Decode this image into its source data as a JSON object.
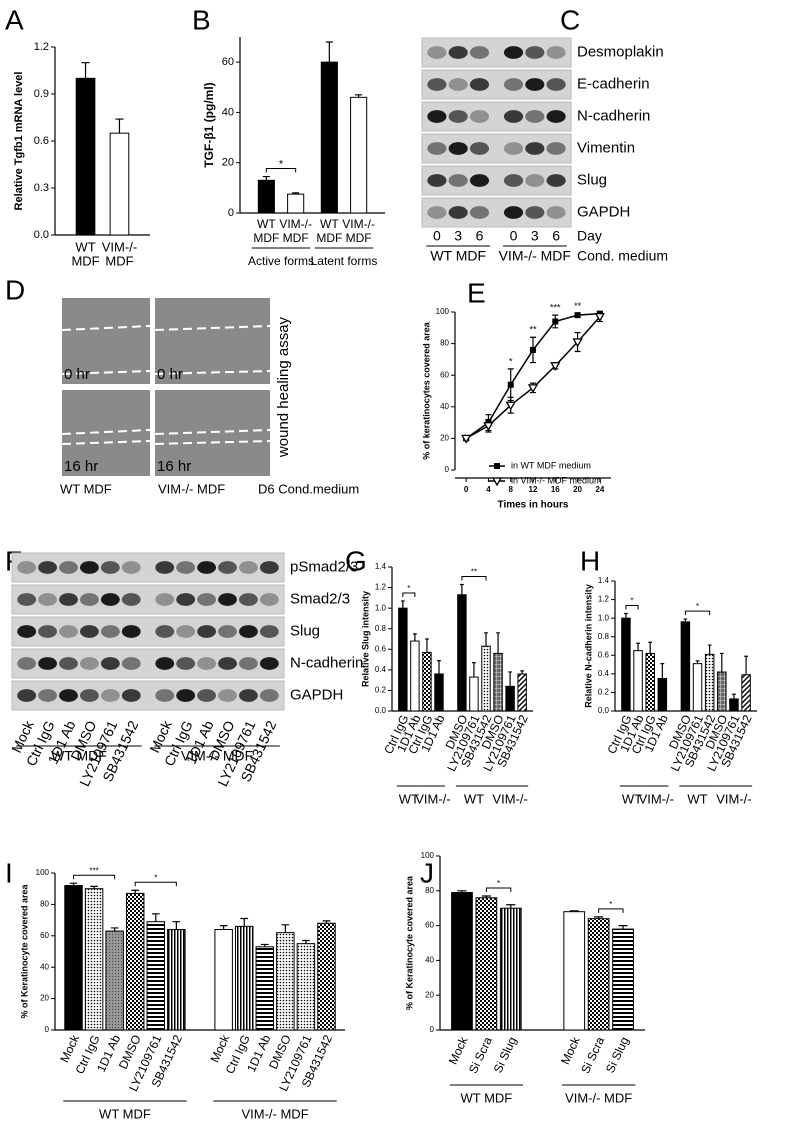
{
  "chart_data": [
    {
      "panel": "A",
      "type": "bar",
      "ylabel": "Relative Tgfb1 mRNA level",
      "categories": [
        [
          "WT",
          "MDF"
        ],
        [
          "VIM-/-",
          "MDF"
        ]
      ],
      "values": [
        1.0,
        0.65
      ],
      "errors": [
        0.1,
        0.09
      ],
      "patterns": [
        "black",
        "white"
      ],
      "ylim": [
        0,
        1.2
      ],
      "yticks": [
        {
          "value": 0,
          "label": "0.0"
        },
        0.3,
        0.6,
        0.9,
        1.2
      ]
    },
    {
      "panel": "B",
      "type": "bar",
      "ylabel": "TGF-β1 (pg/ml)",
      "ylim": [
        0,
        70
      ],
      "yticks": [
        0,
        20,
        40,
        60
      ],
      "groups": [
        {
          "name": "Active forms",
          "categories": [
            [
              "WT",
              "MDF"
            ],
            [
              "VIM-/-",
              "MDF"
            ]
          ],
          "values": [
            13,
            7.5
          ],
          "errors": [
            1.5,
            0.5
          ],
          "patterns": [
            "black",
            "white"
          ]
        },
        {
          "name": "Latent forms",
          "categories": [
            [
              "WT",
              "MDF"
            ],
            [
              "VIM-/-",
              "MDF"
            ]
          ],
          "values": [
            60,
            46
          ],
          "errors": [
            8,
            1
          ],
          "patterns": [
            "black",
            "white"
          ]
        }
      ],
      "brackets": [
        {
          "label": "*",
          "from": 0,
          "to": 1
        }
      ]
    },
    {
      "panel": "E",
      "type": "line",
      "ylabel": "% of keratinocytes covered area",
      "xlabel": "Times in hours",
      "x": [
        0,
        4,
        8,
        12,
        16,
        20,
        24
      ],
      "xlim": [
        -2,
        26
      ],
      "xticks": [
        0,
        4,
        8,
        12,
        16,
        20,
        24
      ],
      "ylim": [
        0,
        100
      ],
      "yticks": [
        0,
        20,
        40,
        60,
        80,
        100
      ],
      "legend": "lower right",
      "series": [
        {
          "name": "in WT MDF medium",
          "marker": "square",
          "color": "#000000",
          "values": [
            20,
            30,
            54,
            76,
            94,
            98,
            99
          ],
          "errors": [
            1,
            5,
            10,
            8,
            4,
            1,
            1
          ]
        },
        {
          "name": "in VIM-/- MDF medium",
          "marker": "triangle-down",
          "color": "#000000",
          "values": [
            20,
            28,
            41,
            52,
            66,
            81,
            97
          ],
          "errors": [
            1,
            4,
            5,
            3,
            2,
            6,
            3
          ]
        }
      ],
      "annotations": [
        {
          "x": 8,
          "text": "*"
        },
        {
          "x": 12,
          "text": "**"
        },
        {
          "x": 16,
          "text": "***"
        },
        {
          "x": 20,
          "text": "**"
        }
      ]
    },
    {
      "panel": "G",
      "type": "bar",
      "ylabel": "Relative Slug intensity",
      "ylim": [
        0,
        1.4
      ],
      "yticks": [
        {
          "value": 0,
          "label": "0.0"
        },
        0.2,
        0.4,
        0.6,
        0.8,
        {
          "value": 1,
          "label": "1.0"
        },
        1.2,
        1.4
      ],
      "groups": [
        {
          "name": "WT",
          "categories": [
            "Ctrl IgG",
            "1D1 Ab"
          ],
          "values": [
            1.0,
            0.68
          ],
          "errors": [
            0.07,
            0.07
          ],
          "patterns": [
            "black",
            "white"
          ]
        },
        {
          "name": "VIM-/-",
          "categories": [
            "Ctrl IgG",
            "1D1 Ab"
          ],
          "values": [
            0.57,
            0.36
          ],
          "errors": [
            0.13,
            0.13
          ],
          "patterns": [
            "checker",
            "black"
          ]
        },
        {
          "name": "WT",
          "categories": [
            "DMSO",
            "LY2109761",
            "SB431542"
          ],
          "values": [
            1.13,
            0.33,
            0.63
          ],
          "errors": [
            0.1,
            0.14,
            0.13
          ],
          "patterns": [
            "black",
            "white",
            "dots"
          ]
        },
        {
          "name": "VIM-/-",
          "categories": [
            "DMSO",
            "LY2109761",
            "SB431542"
          ],
          "values": [
            0.56,
            0.24,
            0.36
          ],
          "errors": [
            0.2,
            0.14,
            0.03
          ],
          "patterns": [
            "grid",
            "black",
            "diag"
          ]
        }
      ],
      "brackets": [
        {
          "label": "*",
          "from": 0,
          "to": 1
        },
        {
          "label": "**",
          "from": 4,
          "to": 6
        }
      ]
    },
    {
      "panel": "H",
      "type": "bar",
      "ylabel": "Relative N-cadherin intensity",
      "ylim": [
        0,
        1.4
      ],
      "yticks": [
        {
          "value": 0,
          "label": "0.0"
        },
        0.2,
        0.4,
        0.6,
        0.8,
        {
          "value": 1,
          "label": "1.0"
        },
        1.2,
        1.4
      ],
      "groups": [
        {
          "name": "WT",
          "categories": [
            "Ctrl IgG",
            "1D1 Ab"
          ],
          "values": [
            1.0,
            0.65
          ],
          "errors": [
            0.05,
            0.08
          ],
          "patterns": [
            "black",
            "white"
          ]
        },
        {
          "name": "VIM-/-",
          "categories": [
            "Ctrl IgG",
            "1D1 Ab"
          ],
          "values": [
            0.62,
            0.35
          ],
          "errors": [
            0.12,
            0.16
          ],
          "patterns": [
            "checker",
            "black"
          ]
        },
        {
          "name": "WT",
          "categories": [
            "DMSO",
            "LY2109761",
            "SB431542"
          ],
          "values": [
            0.96,
            0.51,
            0.61
          ],
          "errors": [
            0.03,
            0.03,
            0.1
          ],
          "patterns": [
            "black",
            "white",
            "dots"
          ]
        },
        {
          "name": "VIM-/-",
          "categories": [
            "DMSO",
            "LY2109761",
            "SB431542"
          ],
          "values": [
            0.42,
            0.13,
            0.39
          ],
          "errors": [
            0.2,
            0.05,
            0.2
          ],
          "patterns": [
            "grid",
            "black",
            "diag"
          ]
        }
      ],
      "brackets": [
        {
          "label": "*",
          "from": 0,
          "to": 1
        },
        {
          "label": "*",
          "from": 4,
          "to": 6
        }
      ]
    },
    {
      "panel": "I",
      "type": "bar",
      "ylabel": "% of Keratinocyte covered area",
      "ylim": [
        0,
        100
      ],
      "yticks": [
        0,
        20,
        40,
        60,
        80,
        100
      ],
      "groups": [
        {
          "name": "WT MDF",
          "categories": [
            "Mock",
            "Ctrl IgG",
            "1D1 Ab",
            "DMSO",
            "LY2109761",
            "SB431542"
          ],
          "values": [
            92,
            90,
            63,
            87,
            69,
            64
          ],
          "errors": [
            1.5,
            1.5,
            2,
            2,
            5,
            5
          ],
          "patterns": [
            "black",
            "dots",
            "gray",
            "checker",
            "hstripes",
            "vstripes"
          ]
        },
        {
          "name": "VIM-/- MDF",
          "categories": [
            "Mock",
            "Ctrl IgG",
            "1D1 Ab",
            "DMSO",
            "LY2109761",
            "SB431542"
          ],
          "values": [
            64,
            66,
            53,
            62,
            55,
            68
          ],
          "errors": [
            2.5,
            5,
            1.5,
            5,
            2,
            1.5
          ],
          "patterns": [
            "white",
            "vstripes",
            "hstripes",
            "dots",
            "dots",
            "checker"
          ]
        }
      ],
      "brackets": [
        {
          "label": "***",
          "from": 0,
          "to": 2
        },
        {
          "label": "*",
          "from": 3,
          "to": 5
        }
      ]
    },
    {
      "panel": "J",
      "type": "bar",
      "ylabel": "% of Keratinocyte covered area",
      "ylim": [
        0,
        100
      ],
      "yticks": [
        0,
        20,
        40,
        60,
        80,
        100
      ],
      "groups": [
        {
          "name": "WT MDF",
          "categories": [
            "Mock",
            "Si Scra",
            "Si Slug"
          ],
          "values": [
            79,
            76,
            70
          ],
          "errors": [
            1,
            1,
            2
          ],
          "patterns": [
            "black",
            "checker",
            "vstripes"
          ]
        },
        {
          "name": "VIM-/- MDF",
          "categories": [
            "Mock",
            "Si Scra",
            "Si Slug"
          ],
          "values": [
            68,
            64,
            58
          ],
          "errors": [
            0.5,
            1,
            2
          ],
          "patterns": [
            "white",
            "checker",
            "hstripes"
          ]
        }
      ],
      "brackets": [
        {
          "label": "*",
          "from": 1,
          "to": 2
        },
        {
          "label": "*",
          "from": 4,
          "to": 5
        }
      ]
    }
  ],
  "blots": [
    {
      "panel": "C",
      "rows": [
        "Desmoplakin",
        "E-cadherin",
        "N-cadherin",
        "Vimentin",
        "Slug",
        "GAPDH"
      ],
      "groups": [
        {
          "label": "WT MDF",
          "lanes": [
            "0",
            "3",
            "6"
          ]
        },
        {
          "label": "VIM-/- MDF",
          "lanes": [
            "0",
            "3",
            "6"
          ]
        }
      ],
      "lane_title": "Day",
      "group_title": "Cond. medium"
    },
    {
      "panel": "F",
      "rows": [
        "pSmad2/3",
        "Smad2/3",
        "Slug",
        "N-cadherin",
        "GAPDH"
      ],
      "groups": [
        {
          "label": "WT MDF",
          "lanes": [
            "Mock",
            "Ctrl IgG",
            "1D1 Ab",
            "DMSO",
            "LY2109761",
            "SB431542"
          ]
        },
        {
          "label": "VIM-/- MDF",
          "lanes": [
            "Mock",
            "Ctrl IgG",
            "1D1 Ab",
            "DMSO",
            "LY2109761",
            "SB431542"
          ]
        }
      ]
    }
  ],
  "wound_assay": {
    "panel": "D",
    "columns": [
      {
        "label": "WT MDF",
        "times": [
          "0 hr",
          "16 hr"
        ]
      },
      {
        "label": "VIM-/- MDF",
        "times": [
          "0 hr",
          "16 hr"
        ]
      }
    ],
    "side_label": "wound healing assay",
    "condition": "D6 Cond.medium"
  }
}
